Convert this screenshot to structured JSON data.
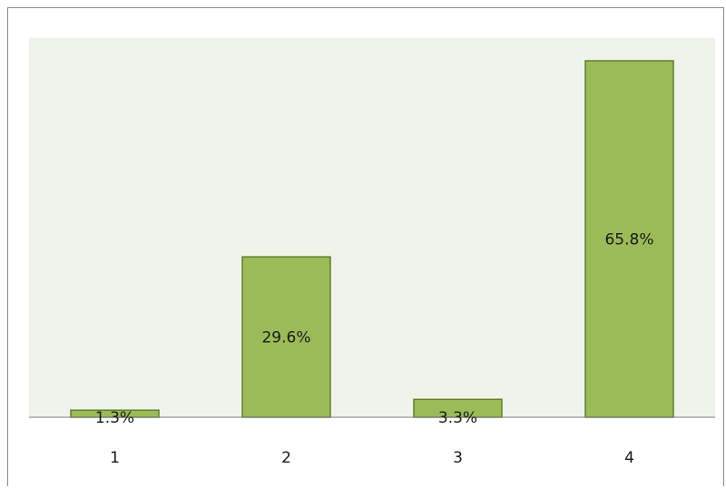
{
  "chart_data": {
    "type": "bar",
    "categories": [
      "1",
      "2",
      "3",
      "4"
    ],
    "values": [
      1.3,
      29.6,
      3.3,
      65.8
    ],
    "data_labels": [
      "1.3%",
      "29.6%",
      "3.3%",
      "65.8%"
    ],
    "ylim": [
      0,
      70
    ],
    "grid": false,
    "legend": "none",
    "colors": {
      "bar_fill": "#9bbb59",
      "bar_stroke": "#5f7f2a",
      "plot_background": "#f0f3ea"
    }
  }
}
